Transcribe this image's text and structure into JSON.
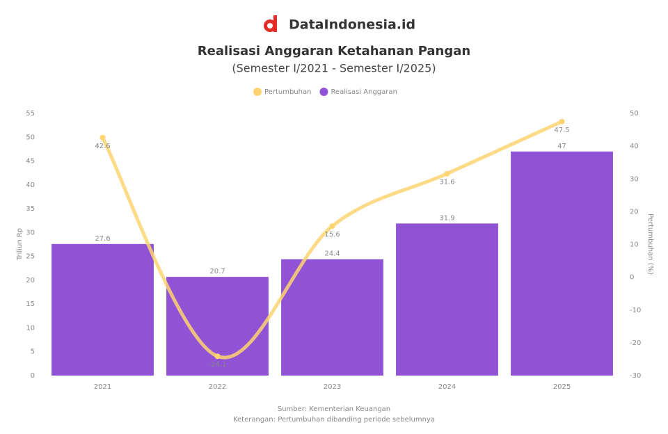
{
  "brand": "DataIndonesia.id",
  "chart_data": {
    "type": "bar-line",
    "title": "Realisasi Anggaran Ketahanan Pangan",
    "subtitle": "(Semester I/2021 - Semester I/2025)",
    "categories": [
      "2021",
      "2022",
      "2023",
      "2024",
      "2025"
    ],
    "series": [
      {
        "name": "Realisasi Anggaran",
        "type": "bar",
        "color": "#9153d6",
        "values": [
          27.6,
          20.7,
          24.4,
          31.9,
          47.0
        ]
      },
      {
        "name": "Pertumbuhan",
        "type": "line",
        "axis": "y2",
        "color": "#fdd471",
        "values": [
          42.6,
          -24.1,
          15.6,
          31.6,
          47.5
        ]
      }
    ],
    "ylabel": "Triliun Rp",
    "y2label": "Pertumbuhan (%)",
    "ylim": [
      0,
      55
    ],
    "yticks": [
      0,
      5,
      10,
      15,
      20,
      25,
      30,
      35,
      40,
      45,
      50,
      55
    ],
    "y2lim": [
      -30,
      50
    ],
    "y2ticks": [
      -30,
      -20,
      -10,
      0,
      10,
      20,
      30,
      40,
      50
    ],
    "grid": false,
    "legend": "top",
    "notes": [
      "Sumber: Kementerian Keuangan",
      "Keterangan: Pertumbuhan dibanding periode sebelumnya"
    ]
  }
}
